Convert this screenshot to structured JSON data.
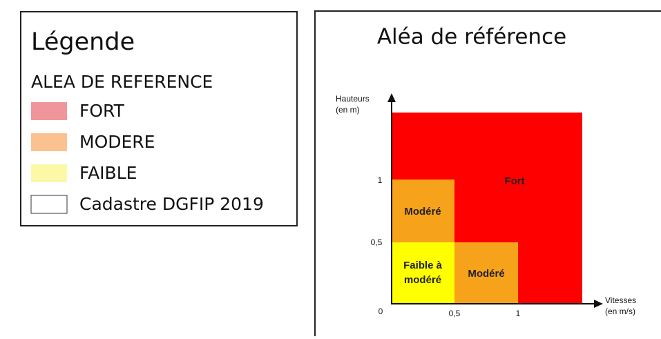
{
  "legend": {
    "title": "Légende",
    "subtitle": "ALEA DE REFERENCE",
    "items": [
      {
        "label": "FORT",
        "color": "#f0959a"
      },
      {
        "label": "MODERE",
        "color": "#fbc28f"
      },
      {
        "label": "FAIBLE",
        "color": "#fbf8a8"
      },
      {
        "label": "Cadastre DGFIP 2019",
        "color": "#ffffff"
      }
    ]
  },
  "diagram": {
    "title": "Aléa de référence",
    "y_axis_label": [
      "Hauteurs",
      "(en m)"
    ],
    "x_axis_label": [
      "Vitesses",
      "(en m/s)"
    ],
    "y_ticks": [
      "1",
      "0,5"
    ],
    "x_ticks": [
      "0,5",
      "1"
    ],
    "origin": "0",
    "zones": [
      {
        "label": [
          "Fort"
        ],
        "color": "#ff0000"
      },
      {
        "label": [
          "Modéré"
        ],
        "color": "#f7a21b"
      },
      {
        "label": [
          "Modéré"
        ],
        "color": "#f7a21b"
      },
      {
        "label": [
          "Faible à",
          "modéré"
        ],
        "color": "#ffff00"
      }
    ]
  }
}
